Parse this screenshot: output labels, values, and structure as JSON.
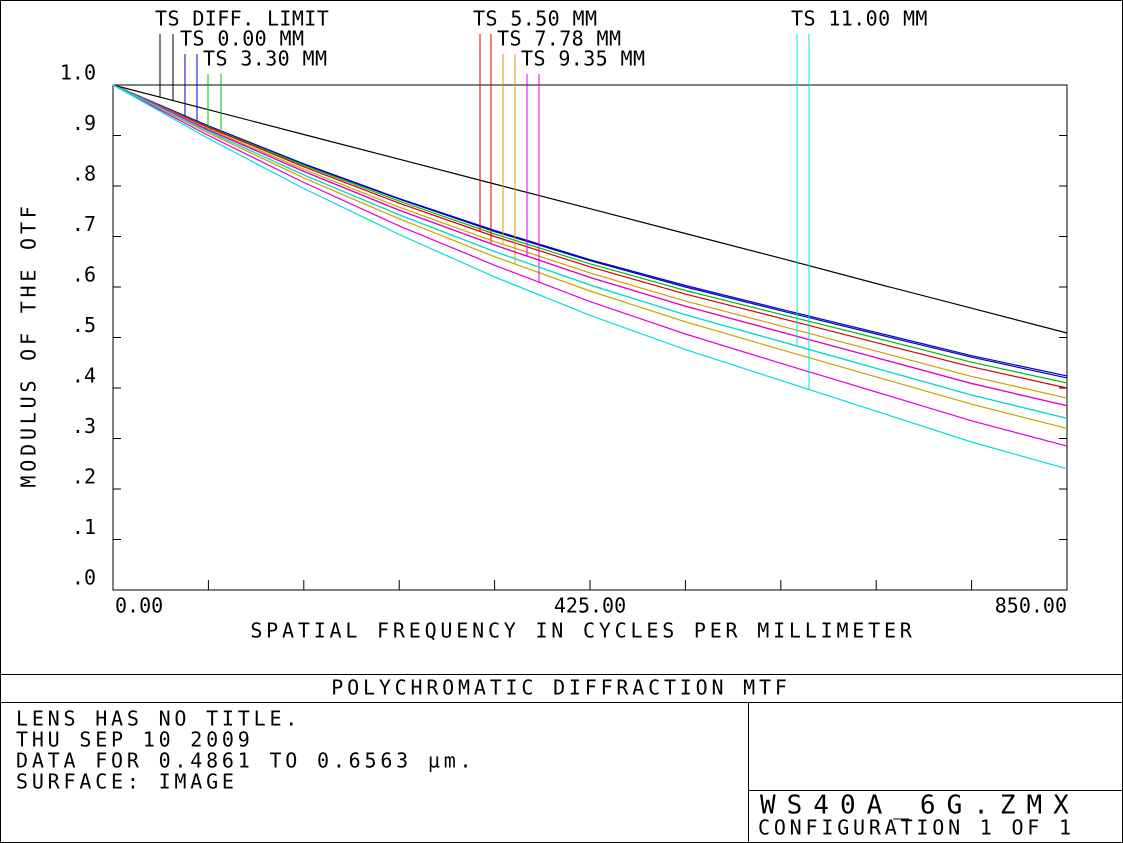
{
  "chart_data": {
    "type": "line",
    "title": "POLYCHROMATIC DIFFRACTION MTF",
    "x_label": "SPATIAL FREQUENCY IN CYCLES PER MILLIMETER",
    "y_label": "MODULUS OF THE OTF",
    "x": [
      0,
      85,
      170,
      255,
      340,
      425,
      510,
      595,
      680,
      765,
      850
    ],
    "xlim": [
      0,
      850
    ],
    "ylim": [
      0,
      1
    ],
    "xticks": [
      {
        "value": 0,
        "label": "0.00"
      },
      {
        "value": 425,
        "label": "425.00"
      },
      {
        "value": 850,
        "label": "850.00"
      }
    ],
    "xminor_ticks": [
      85,
      170,
      255,
      340,
      510,
      595,
      680,
      765
    ],
    "yticks": [
      {
        "value": 0,
        "label": ".0"
      },
      {
        "value": 0.1,
        "label": ".1"
      },
      {
        "value": 0.2,
        "label": ".2"
      },
      {
        "value": 0.3,
        "label": ".3"
      },
      {
        "value": 0.4,
        "label": ".4"
      },
      {
        "value": 0.5,
        "label": ".5"
      },
      {
        "value": 0.6,
        "label": ".6"
      },
      {
        "value": 0.7,
        "label": ".7"
      },
      {
        "value": 0.8,
        "label": ".8"
      },
      {
        "value": 0.9,
        "label": ".9"
      },
      {
        "value": 1,
        "label": "1.0"
      }
    ],
    "series": [
      {
        "name": "TS DIFF. LIMIT",
        "color": "#000000",
        "values": [
          1,
          0.951,
          0.902,
          0.853,
          0.804,
          0.755,
          0.706,
          0.657,
          0.607,
          0.558,
          0.509
        ]
      },
      {
        "name": "TS 0.00 MM",
        "color": "#0000c8",
        "tangential": [
          1,
          0.919,
          0.844,
          0.775,
          0.712,
          0.654,
          0.603,
          0.556,
          0.51,
          0.464,
          0.424
        ],
        "sagittal": [
          1,
          0.919,
          0.843,
          0.774,
          0.71,
          0.652,
          0.6,
          0.553,
          0.507,
          0.461,
          0.42
        ]
      },
      {
        "name": "TS 3.30 MM",
        "color": "#00c000",
        "tangential": [
          1,
          0.917,
          0.841,
          0.77,
          0.705,
          0.646,
          0.593,
          0.546,
          0.499,
          0.451,
          0.41
        ],
        "sagittal": [
          1,
          0.908,
          0.822,
          0.743,
          0.67,
          0.604,
          0.545,
          0.492,
          0.439,
          0.386,
          0.34
        ]
      },
      {
        "name": "TS 5.50 MM",
        "color": "#d80000",
        "tangential": [
          1,
          0.916,
          0.838,
          0.766,
          0.7,
          0.64,
          0.586,
          0.538,
          0.49,
          0.442,
          0.4
        ],
        "sagittal": [
          1,
          0.911,
          0.829,
          0.752,
          0.683,
          0.619,
          0.562,
          0.511,
          0.46,
          0.409,
          0.365
        ]
      },
      {
        "name": "TS 7.78 MM",
        "color": "#d0a000",
        "tangential": [
          1,
          0.913,
          0.833,
          0.758,
          0.69,
          0.628,
          0.572,
          0.523,
          0.473,
          0.423,
          0.38
        ],
        "sagittal": [
          1,
          0.905,
          0.816,
          0.735,
          0.66,
          0.592,
          0.531,
          0.476,
          0.422,
          0.368,
          0.32
        ]
      },
      {
        "name": "TS 9.35 MM",
        "color": "#e000e0",
        "tangential": [
          1,
          0.911,
          0.829,
          0.752,
          0.683,
          0.619,
          0.562,
          0.511,
          0.46,
          0.409,
          0.365
        ],
        "sagittal": [
          1,
          0.9,
          0.807,
          0.721,
          0.643,
          0.571,
          0.507,
          0.449,
          0.392,
          0.335,
          0.285
        ]
      },
      {
        "name": "TS 11.00 MM",
        "color": "#00e0e0",
        "tangential": [
          1,
          0.908,
          0.822,
          0.743,
          0.67,
          0.604,
          0.545,
          0.492,
          0.439,
          0.386,
          0.34
        ],
        "sagittal": [
          1,
          0.894,
          0.795,
          0.704,
          0.62,
          0.544,
          0.476,
          0.415,
          0.354,
          0.293,
          0.24
        ]
      }
    ]
  },
  "info": {
    "lines": [
      "LENS HAS NO TITLE.",
      "THU SEP 10 2009",
      "DATA FOR 0.4861 TO 0.6563 µm.",
      "SURFACE: IMAGE"
    ],
    "file": "WS40A_6G.ZMX",
    "configuration": "CONFIGURATION 1 OF 1"
  }
}
